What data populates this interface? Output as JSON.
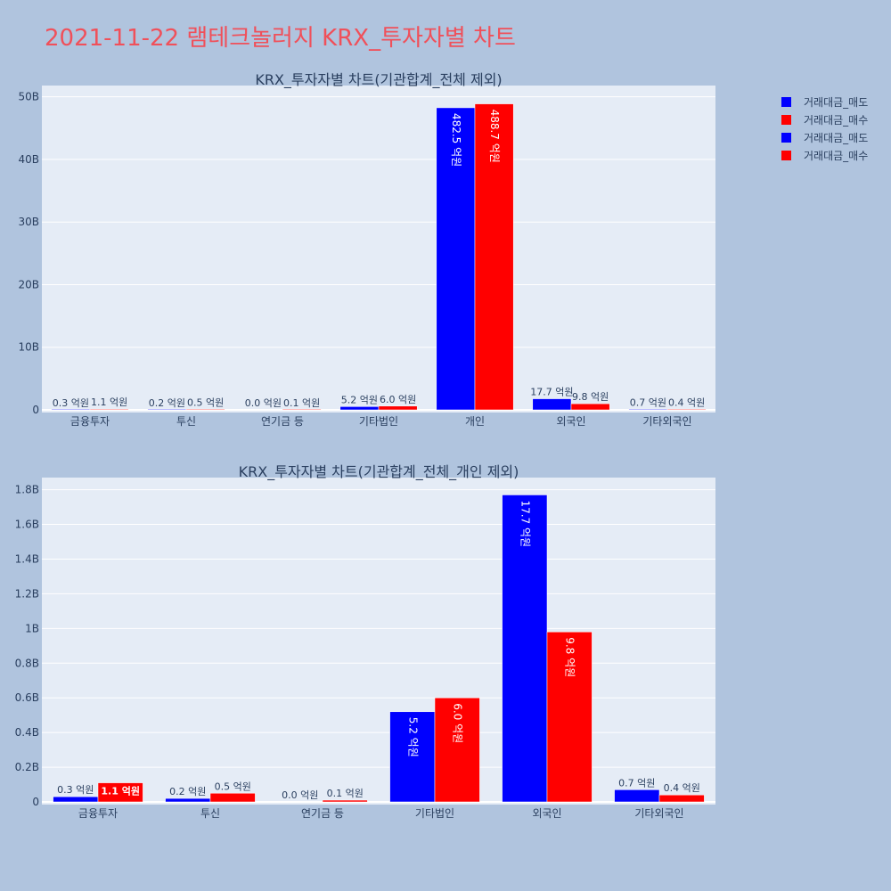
{
  "title": "2021-11-22 램테크놀러지 KRX_투자자별 차트",
  "legend": [
    {
      "label": "거래대금_매도",
      "color": "#0000ff"
    },
    {
      "label": "거래대금_매수",
      "color": "#ff0000"
    },
    {
      "label": "거래대금_매도",
      "color": "#0000ff"
    },
    {
      "label": "거래대금_매수",
      "color": "#ff0000"
    }
  ],
  "colors": {
    "sell": "#0000ff",
    "buy": "#ff0000",
    "plot_bg": "#e5ecf6",
    "page_bg": "#b0c4de",
    "title": "#f0505a"
  },
  "chart_data": [
    {
      "type": "bar",
      "title": "KRX_투자자별 차트(기관합계_전체 제외)",
      "categories": [
        "금융투자",
        "투신",
        "연기금 등",
        "기타법인",
        "개인",
        "외국인",
        "기타외국인"
      ],
      "series": [
        {
          "name": "거래대금_매도",
          "color": "#0000ff",
          "values": [
            30000000,
            20000000,
            0,
            520000000,
            48250000000,
            1770000000,
            70000000
          ],
          "labels": [
            "0.3 억원",
            "0.2 억원",
            "0.0 억원",
            "5.2 억원",
            "482.5 억원",
            "17.7 억원",
            "0.7 억원"
          ]
        },
        {
          "name": "거래대금_매수",
          "color": "#ff0000",
          "values": [
            110000000,
            50000000,
            10000000,
            600000000,
            48870000000,
            980000000,
            40000000
          ],
          "labels": [
            "1.1 억원",
            "0.5 억원",
            "0.1 억원",
            "6.0 억원",
            "488.7 억원",
            "9.8 억원",
            "0.4 억원"
          ]
        }
      ],
      "yticks": [
        0,
        10000000000,
        20000000000,
        30000000000,
        40000000000,
        50000000000
      ],
      "ytick_labels": [
        "0",
        "10B",
        "20B",
        "30B",
        "40B",
        "50B"
      ],
      "ylim": [
        0,
        51800000000
      ],
      "grid": true
    },
    {
      "type": "bar",
      "title": "KRX_투자자별 차트(기관합계_전체_개인 제외)",
      "categories": [
        "금융투자",
        "투신",
        "연기금 등",
        "기타법인",
        "외국인",
        "기타외국인"
      ],
      "series": [
        {
          "name": "거래대금_매도",
          "color": "#0000ff",
          "values": [
            30000000,
            20000000,
            0,
            520000000,
            1770000000,
            70000000
          ],
          "labels": [
            "0.3 억원",
            "0.2 억원",
            "0.0 억원",
            "5.2 억원",
            "17.7 억원",
            "0.7 억원"
          ]
        },
        {
          "name": "거래대금_매수",
          "color": "#ff0000",
          "values": [
            110000000,
            50000000,
            10000000,
            600000000,
            980000000,
            40000000
          ],
          "labels": [
            "1.1 억원",
            "0.5 억원",
            "0.1 억원",
            "6.0 억원",
            "9.8 억원",
            "0.4 억원"
          ]
        }
      ],
      "yticks": [
        0,
        200000000,
        400000000,
        600000000,
        800000000,
        1000000000,
        1200000000,
        1400000000,
        1600000000,
        1800000000
      ],
      "ytick_labels": [
        "0",
        "0.2B",
        "0.4B",
        "0.6B",
        "0.8B",
        "1B",
        "1.2B",
        "1.4B",
        "1.6B",
        "1.8B"
      ],
      "ylim": [
        0,
        1870000000
      ],
      "grid": true
    }
  ]
}
